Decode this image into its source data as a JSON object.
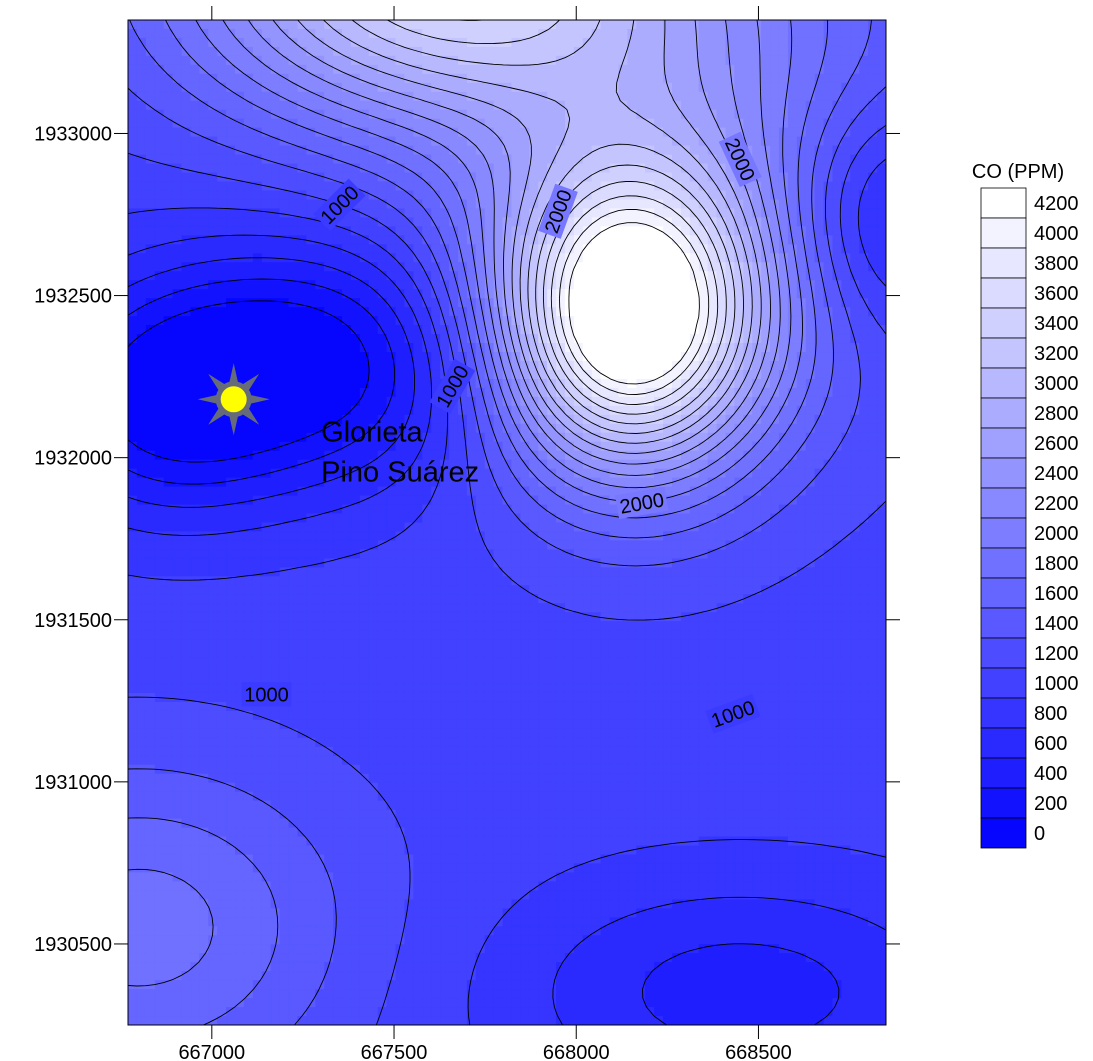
{
  "chart_data": {
    "type": "contour",
    "title": "",
    "xlabel": "",
    "ylabel": "",
    "xlim": [
      666770,
      668850
    ],
    "ylim": [
      1930250,
      1933350
    ],
    "x_ticks": [
      667000,
      667500,
      668000,
      668500
    ],
    "y_ticks": [
      1930500,
      1931000,
      1931500,
      1932000,
      1932500,
      1933000
    ],
    "x_tick_labels": [
      "667000",
      "667500",
      "668000",
      "668500"
    ],
    "y_tick_labels": [
      "1930500",
      "1931000",
      "1931500",
      "1932000",
      "1932500",
      "1933000"
    ],
    "contour_interval": 200,
    "contour_labels": [
      {
        "text": "1000",
        "x": 667350,
        "y": 1932780,
        "angle": -45
      },
      {
        "text": "2000",
        "x": 667950,
        "y": 1932760,
        "angle": -70
      },
      {
        "text": "2000",
        "x": 668450,
        "y": 1932920,
        "angle": 65
      },
      {
        "text": "1000",
        "x": 667660,
        "y": 1932220,
        "angle": -60
      },
      {
        "text": "2000",
        "x": 668180,
        "y": 1931860,
        "angle": -10
      },
      {
        "text": "1000",
        "x": 667150,
        "y": 1931270,
        "angle": 0
      },
      {
        "text": "1000",
        "x": 668430,
        "y": 1931210,
        "angle": -20
      }
    ],
    "field_sources": [
      {
        "x": 668140,
        "y": 1932430,
        "amp": 3400,
        "sx": 260,
        "sy": 330
      },
      {
        "x": 667600,
        "y": 1933500,
        "amp": 2400,
        "sx": 480,
        "sy": 330
      },
      {
        "x": 668300,
        "y": 1933000,
        "amp": 900,
        "sx": 500,
        "sy": 600
      },
      {
        "x": 667300,
        "y": 1932300,
        "amp": -1100,
        "sx": 380,
        "sy": 280
      },
      {
        "x": 666850,
        "y": 1932150,
        "amp": -700,
        "sx": 250,
        "sy": 250
      },
      {
        "x": 668850,
        "y": 1932750,
        "amp": -800,
        "sx": 200,
        "sy": 250
      },
      {
        "x": 666800,
        "y": 1930550,
        "amp": 800,
        "sx": 400,
        "sy": 350
      },
      {
        "x": 668450,
        "y": 1930350,
        "amp": -600,
        "sx": 450,
        "sy": 250
      }
    ],
    "field_base": 1100,
    "colorbar": {
      "title": "CO (PPM)",
      "min": 0,
      "max": 4300,
      "levels": [
        "4200",
        "4000",
        "3800",
        "3600",
        "3400",
        "3200",
        "3000",
        "2800",
        "2600",
        "2400",
        "2200",
        "2000",
        "1800",
        "1600",
        "1400",
        "1200",
        "1000",
        "800",
        "600",
        "400",
        "200",
        "0"
      ],
      "color_low": "#0000ff",
      "color_high": "#ffffff"
    },
    "annotation": {
      "lines": [
        "Glorieta",
        "Pino Suárez"
      ],
      "x": 667300,
      "y": 1932050
    },
    "marker": {
      "icon": "sun-icon",
      "x": 667060,
      "y": 1932180,
      "fill": "#ffff00",
      "ray_color": "#666b7a"
    }
  }
}
